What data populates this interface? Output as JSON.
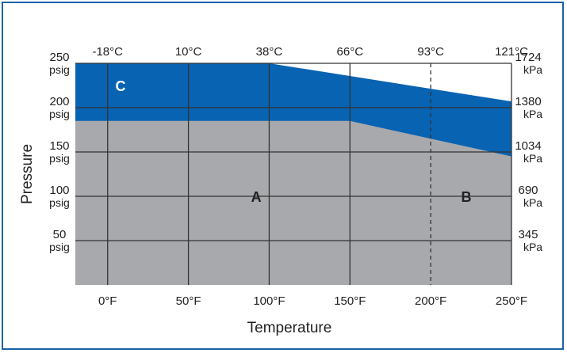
{
  "chart_data": {
    "type": "area",
    "xlabel": "Temperature",
    "ylabel": "Pressure",
    "x_ticks": [
      {
        "value": 0,
        "label": "0°F"
      },
      {
        "value": 50,
        "label": "50°F"
      },
      {
        "value": 100,
        "label": "100°F"
      },
      {
        "value": 150,
        "label": "150°F"
      },
      {
        "value": 200,
        "label": "200°F"
      },
      {
        "value": 250,
        "label": "250°F"
      }
    ],
    "x2_ticks": [
      {
        "value": 0,
        "label": "-18°C"
      },
      {
        "value": 50,
        "label": "10°C"
      },
      {
        "value": 100,
        "label": "38°C"
      },
      {
        "value": 150,
        "label": "66°C"
      },
      {
        "value": 200,
        "label": "93°C"
      },
      {
        "value": 250,
        "label": "121°C"
      }
    ],
    "y_ticks": [
      {
        "value": 50,
        "label": "50",
        "unit": "psig"
      },
      {
        "value": 100,
        "label": "100",
        "unit": "psig"
      },
      {
        "value": 150,
        "label": "150",
        "unit": "psig"
      },
      {
        "value": 200,
        "label": "200",
        "unit": "psig"
      },
      {
        "value": 250,
        "label": "250",
        "unit": "psig"
      }
    ],
    "y2_ticks": [
      {
        "value": 50,
        "label": "345",
        "unit": "kPa"
      },
      {
        "value": 100,
        "label": "690",
        "unit": "kPa"
      },
      {
        "value": 150,
        "label": "1034",
        "unit": "kPa"
      },
      {
        "value": 200,
        "label": "1380",
        "unit": "kPa"
      },
      {
        "value": 250,
        "label": "1724",
        "unit": "kPa"
      }
    ],
    "xlim": [
      -20,
      250
    ],
    "ylim": [
      0,
      250
    ],
    "grid": true,
    "dashed_divider_x": 200,
    "series": [
      {
        "id": "grey",
        "label": "",
        "x": [
          -20,
          150,
          250
        ],
        "y": [
          185,
          185,
          145
        ]
      },
      {
        "id": "blue",
        "label": "",
        "x": [
          -20,
          100,
          250
        ],
        "y": [
          250,
          250,
          207
        ]
      }
    ],
    "regions": [
      {
        "label": "A",
        "x": 92,
        "y": 100
      },
      {
        "label": "B",
        "x": 222,
        "y": 100
      },
      {
        "label": "C",
        "x": 8,
        "y": 225
      }
    ],
    "colors": {
      "grey": "#a7a9ac",
      "blue": "#0863b3",
      "grid": "#333333",
      "border": "#1a62a8"
    }
  }
}
